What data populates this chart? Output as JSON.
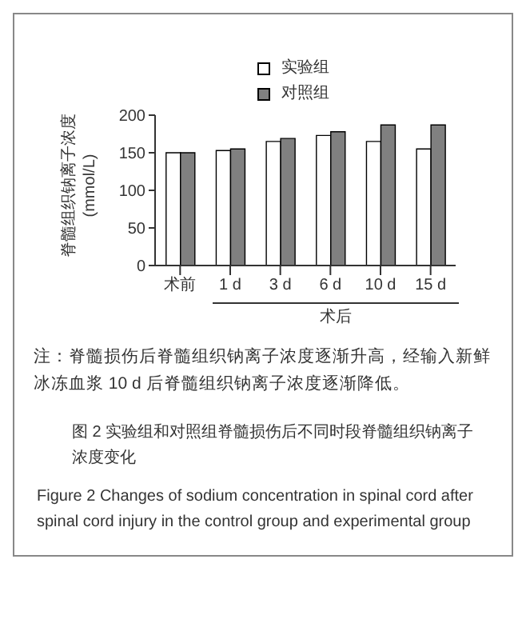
{
  "chart_data": {
    "type": "bar",
    "xlabel": "术后",
    "ylabel": "脊髓组织钠离子浓度 (mmol/L)",
    "categories": [
      "术前",
      "1 d",
      "3 d",
      "6 d",
      "10 d",
      "15 d"
    ],
    "series": [
      {
        "name": "实验组",
        "color": "#ffffff",
        "values": [
          150,
          153,
          165,
          173,
          165,
          155
        ]
      },
      {
        "name": "对照组",
        "color": "#808080",
        "values": [
          150,
          155,
          169,
          178,
          187,
          187
        ]
      }
    ],
    "ylim": [
      0,
      200
    ],
    "yticks": [
      0,
      50,
      100,
      150,
      200
    ],
    "grid": false,
    "legend": "top left",
    "annotations": [
      "注：脊髓损伤后脊髓组织钠离子浓度逐渐升高，经输入新鲜冰冻血浆 10 d 后脊髓组织钠离子浓度逐渐降低。",
      "图 2  实验组和对照组脊髓损伤后不同时段脊髓组织钠离子浓度变化",
      "Figure 2  Changes of sodium concentration in spinal cord after spinal cord injury in the control group and experimental group"
    ]
  }
}
